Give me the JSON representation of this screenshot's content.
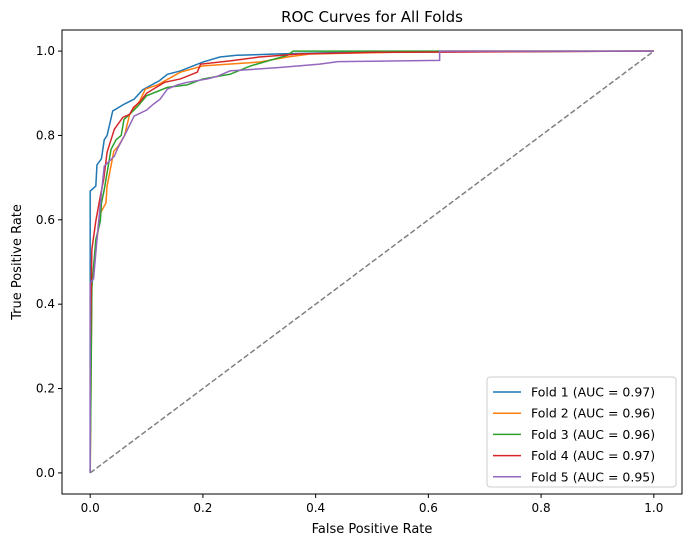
{
  "chart_data": {
    "type": "line",
    "title": "ROC Curves for All Folds",
    "xlabel": "False Positive Rate",
    "ylabel": "True Positive Rate",
    "xlim": [
      -0.05,
      1.05
    ],
    "ylim": [
      -0.05,
      1.05
    ],
    "xticks": [
      "0.0",
      "0.2",
      "0.4",
      "0.6",
      "0.8",
      "1.0"
    ],
    "yticks": [
      "0.0",
      "0.2",
      "0.4",
      "0.6",
      "0.8",
      "1.0"
    ],
    "grid": false,
    "legend_position": "bottom-right",
    "series": [
      {
        "name": "Fold 1 (AUC = 0.97)",
        "color": "#1f77b4",
        "points": [
          [
            0,
            0
          ],
          [
            0,
            0.668
          ],
          [
            0.01,
            0.68
          ],
          [
            0.012,
            0.73
          ],
          [
            0.02,
            0.745
          ],
          [
            0.025,
            0.79
          ],
          [
            0.03,
            0.8
          ],
          [
            0.04,
            0.858
          ],
          [
            0.06,
            0.874
          ],
          [
            0.078,
            0.886
          ],
          [
            0.093,
            0.908
          ],
          [
            0.123,
            0.93
          ],
          [
            0.137,
            0.945
          ],
          [
            0.16,
            0.953
          ],
          [
            0.2,
            0.974
          ],
          [
            0.23,
            0.986
          ],
          [
            0.26,
            0.99
          ],
          [
            0.33,
            0.993
          ],
          [
            0.45,
            0.997
          ],
          [
            1,
            1
          ]
        ]
      },
      {
        "name": "Fold 2 (AUC = 0.96)",
        "color": "#ff7f0e",
        "points": [
          [
            0,
            0
          ],
          [
            0.003,
            0.45
          ],
          [
            0.01,
            0.537
          ],
          [
            0.019,
            0.618
          ],
          [
            0.028,
            0.64
          ],
          [
            0.03,
            0.68
          ],
          [
            0.042,
            0.763
          ],
          [
            0.05,
            0.775
          ],
          [
            0.061,
            0.8
          ],
          [
            0.07,
            0.85
          ],
          [
            0.088,
            0.882
          ],
          [
            0.098,
            0.91
          ],
          [
            0.12,
            0.92
          ],
          [
            0.16,
            0.95
          ],
          [
            0.2,
            0.965
          ],
          [
            0.3,
            0.974
          ],
          [
            0.35,
            0.986
          ],
          [
            0.39,
            0.993
          ],
          [
            0.63,
            1
          ],
          [
            1,
            1
          ]
        ]
      },
      {
        "name": "Fold 3 (AUC = 0.96)",
        "color": "#2ca02c",
        "points": [
          [
            0,
            0
          ],
          [
            0.003,
            0.44
          ],
          [
            0.01,
            0.553
          ],
          [
            0.018,
            0.597
          ],
          [
            0.02,
            0.64
          ],
          [
            0.025,
            0.672
          ],
          [
            0.037,
            0.767
          ],
          [
            0.046,
            0.79
          ],
          [
            0.055,
            0.8
          ],
          [
            0.06,
            0.838
          ],
          [
            0.07,
            0.85
          ],
          [
            0.085,
            0.87
          ],
          [
            0.1,
            0.894
          ],
          [
            0.137,
            0.914
          ],
          [
            0.172,
            0.92
          ],
          [
            0.2,
            0.934
          ],
          [
            0.248,
            0.945
          ],
          [
            0.285,
            0.965
          ],
          [
            0.35,
            0.99
          ],
          [
            0.36,
            1
          ],
          [
            1,
            1
          ]
        ]
      },
      {
        "name": "Fold 4 (AUC = 0.97)",
        "color": "#d62728",
        "points": [
          [
            0,
            0.3
          ],
          [
            0.003,
            0.53
          ],
          [
            0.01,
            0.597
          ],
          [
            0.018,
            0.656
          ],
          [
            0.024,
            0.696
          ],
          [
            0.03,
            0.76
          ],
          [
            0.037,
            0.79
          ],
          [
            0.043,
            0.815
          ],
          [
            0.058,
            0.843
          ],
          [
            0.07,
            0.85
          ],
          [
            0.077,
            0.867
          ],
          [
            0.088,
            0.879
          ],
          [
            0.1,
            0.9
          ],
          [
            0.117,
            0.914
          ],
          [
            0.132,
            0.926
          ],
          [
            0.16,
            0.934
          ],
          [
            0.19,
            0.95
          ],
          [
            0.196,
            0.969
          ],
          [
            0.25,
            0.977
          ],
          [
            0.3,
            0.986
          ],
          [
            0.37,
            0.993
          ],
          [
            0.5,
            0.997
          ],
          [
            1,
            1
          ]
        ]
      },
      {
        "name": "Fold 5 (AUC = 0.95)",
        "color": "#9467bd",
        "points": [
          [
            0,
            0
          ],
          [
            0,
            0.45
          ],
          [
            0.006,
            0.46
          ],
          [
            0.012,
            0.553
          ],
          [
            0.02,
            0.665
          ],
          [
            0.025,
            0.727
          ],
          [
            0.043,
            0.751
          ],
          [
            0.049,
            0.77
          ],
          [
            0.061,
            0.8
          ],
          [
            0.078,
            0.846
          ],
          [
            0.1,
            0.86
          ],
          [
            0.112,
            0.874
          ],
          [
            0.124,
            0.886
          ],
          [
            0.137,
            0.91
          ],
          [
            0.155,
            0.92
          ],
          [
            0.172,
            0.926
          ],
          [
            0.208,
            0.934
          ],
          [
            0.225,
            0.94
          ],
          [
            0.248,
            0.953
          ],
          [
            0.336,
            0.961
          ],
          [
            0.407,
            0.969
          ],
          [
            0.44,
            0.975
          ],
          [
            0.62,
            0.978
          ],
          [
            0.62,
            1
          ],
          [
            1,
            1
          ]
        ]
      }
    ],
    "reference_line": {
      "points": [
        [
          0,
          0
        ],
        [
          1,
          1
        ]
      ],
      "color": "#808080",
      "style": "dashed"
    }
  }
}
